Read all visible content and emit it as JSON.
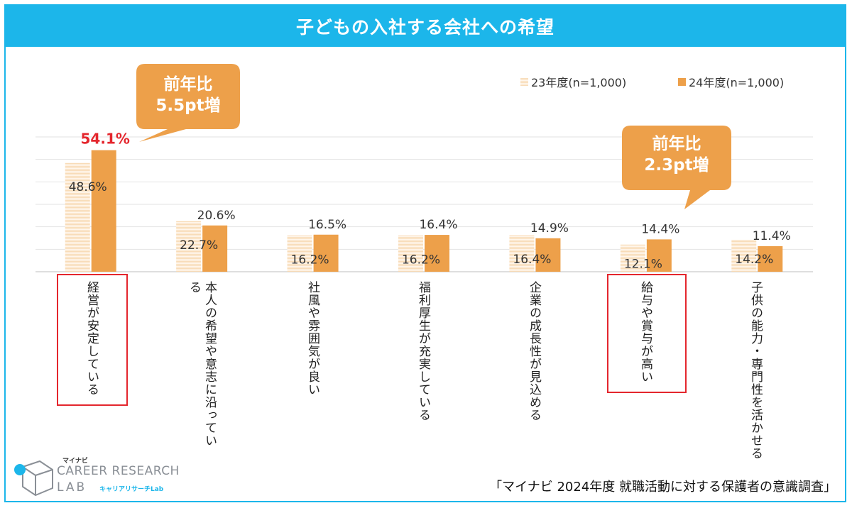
{
  "title": "子どもの入社する会社への希望",
  "legend": {
    "fy23": "23年度(n=1,000)",
    "fy24": "24年度(n=1,000)"
  },
  "callouts": [
    {
      "line1": "前年比",
      "line2": "5.5pt増"
    },
    {
      "line1": "前年比",
      "line2": "2.3pt増"
    }
  ],
  "source": "「マイナビ 2024年度 就職活動に対する保護者の意識調査」",
  "logo": {
    "top": "マイナビ",
    "main": "CAREER RESEARCH",
    "lab": "LAB",
    "sub": "キャリアリサーチLab"
  },
  "colors": {
    "header": "#1cb6ea",
    "fy24_bar": "#eda04a",
    "fy23_bar": "#f8dcb8",
    "callout": "#eda04a",
    "highlight": "#e4262d",
    "highlight_value": "#e4262d"
  },
  "chart_data": {
    "type": "bar",
    "title": "子どもの入社する会社への希望",
    "categories": [
      "経営が安定している",
      "本人の希望や意志に沿っている",
      "社風や雰囲気が良い",
      "福利厚生が充実している",
      "企業の成長性が見込める",
      "給与や賞与が高い",
      "子供の能力・専門性を活かせる"
    ],
    "series": [
      {
        "name": "23年度(n=1,000)",
        "values": [
          48.6,
          22.7,
          16.2,
          16.2,
          16.4,
          12.1,
          14.2
        ]
      },
      {
        "name": "24年度(n=1,000)",
        "values": [
          54.1,
          20.6,
          16.5,
          16.4,
          14.9,
          14.4,
          11.4
        ]
      }
    ],
    "ylim": [
      0,
      60
    ],
    "grid": true,
    "legend": "top-right",
    "highlighted_categories": [
      0,
      5
    ]
  }
}
